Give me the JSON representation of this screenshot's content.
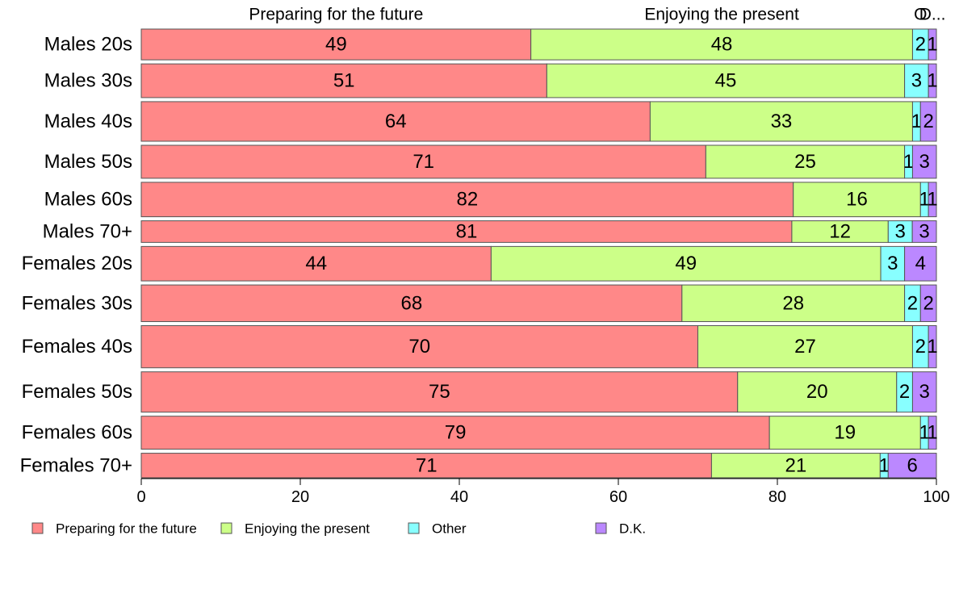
{
  "chart_data": {
    "type": "bar",
    "orientation": "horizontal",
    "stacked": true,
    "categories": [
      "Males 20s",
      "Males 30s",
      "Males 40s",
      "Males 50s",
      "Males 60s",
      "Males 70+",
      "Females 20s",
      "Females 30s",
      "Females 40s",
      "Females 50s",
      "Females 60s",
      "Females 70+"
    ],
    "series": [
      {
        "name": "Preparing for the future",
        "color": "#ff8888",
        "values": [
          49,
          51,
          64,
          71,
          82,
          81,
          44,
          68,
          70,
          75,
          79,
          71
        ]
      },
      {
        "name": "Enjoying the present",
        "color": "#ccff88",
        "values": [
          48,
          45,
          33,
          25,
          16,
          12,
          49,
          28,
          27,
          20,
          19,
          21
        ]
      },
      {
        "name": "Other",
        "color": "#88ffff",
        "values": [
          2,
          3,
          1,
          1,
          1,
          3,
          3,
          2,
          2,
          2,
          1,
          1
        ]
      },
      {
        "name": "D.K.",
        "color": "#bb88ff",
        "values": [
          1,
          1,
          2,
          3,
          1,
          3,
          4,
          2,
          1,
          3,
          1,
          6
        ]
      }
    ],
    "bar_widths": [
      84,
      92,
      108,
      90,
      94,
      59,
      94,
      100,
      115,
      110,
      90,
      67
    ],
    "top_labels": [
      "Preparing for the future",
      "Enjoying the present",
      "Other",
      "D.K."
    ],
    "top_label_display": [
      "Preparing for the future",
      "Enjoying the present",
      "O",
      "D..."
    ],
    "x_ticks": [
      0,
      20,
      40,
      60,
      80,
      100
    ],
    "xlim": [
      0,
      100
    ],
    "xlabel": "",
    "ylabel": "",
    "title": "",
    "grid": false,
    "legend_position": "bottom"
  }
}
